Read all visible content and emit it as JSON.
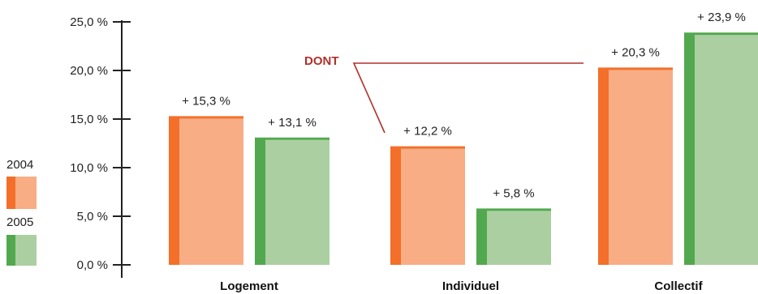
{
  "chart_data": {
    "type": "bar",
    "categories": [
      "Logement",
      "Individuel",
      "Collectif"
    ],
    "series": [
      {
        "name": "2004",
        "values": [
          15.3,
          12.2,
          20.3
        ],
        "labels": [
          "+ 15,3 %",
          "+ 12,2 %",
          "+ 20,3 %"
        ]
      },
      {
        "name": "2005",
        "values": [
          13.1,
          5.8,
          23.9
        ],
        "labels": [
          "+ 13,1 %",
          "+ 5,8 %",
          "+ 23,9 %"
        ]
      }
    ],
    "ylim": [
      0,
      25
    ],
    "yticks": [
      0,
      5,
      10,
      15,
      20,
      25
    ],
    "ytick_labels": [
      "0,0 %",
      "5,0 %",
      "10,0 %",
      "15,0 %",
      "20,0 %",
      "25,0 %"
    ],
    "annotation": "DONT",
    "grid": false,
    "legend_position": "left"
  },
  "colors": {
    "s2004_dark": "#f36f2a",
    "s2004_light": "#f8ad85",
    "s2005_dark": "#52a84e",
    "s2005_light": "#abcfa1",
    "annotation": "#b1312a"
  }
}
